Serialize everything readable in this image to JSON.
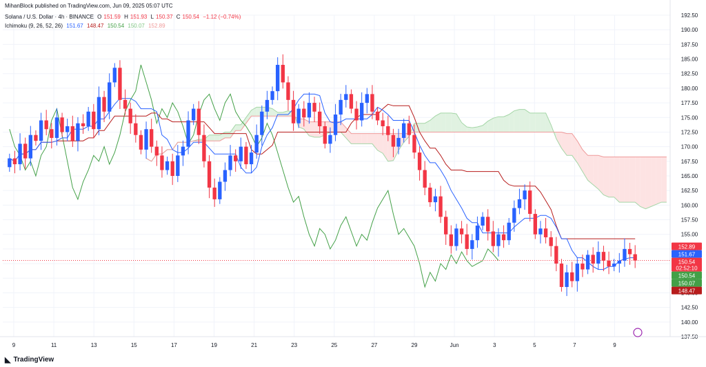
{
  "header": {
    "published": "MihanBlock published on TradingView.com, Jun 09, 2025 05:07 UTC",
    "symbol": "Solana / U.S. Dollar · 4h · BINANCE",
    "ohlc": {
      "o_label": "O",
      "o": "151.59",
      "h_label": "H",
      "h": "151.93",
      "l_label": "L",
      "l": "150.37",
      "c_label": "C",
      "c": "150.54",
      "change": "−1.12 (−0.74%)"
    },
    "indicator": {
      "name": "Ichimoku (9, 26, 52, 26)",
      "v1": "151.67",
      "v2": "148.47",
      "v3": "150.54",
      "v4": "150.07",
      "v5": "152.89"
    }
  },
  "brand": {
    "name": "TradingView"
  },
  "colors": {
    "up": "#2962ff",
    "down": "#f23645",
    "tenkan": "#2962ff",
    "kijun": "#b71c1c",
    "chikou": "#43a047",
    "spanA": "#a5d6a7",
    "spanB": "#ef9a9a",
    "cloud_bull": "#e0f2e1",
    "cloud_bear": "#fde3e3"
  },
  "chart_data": {
    "type": "candlestick",
    "yaxis": {
      "min": 137.5,
      "max": 192.5,
      "ticks": [
        "192.50",
        "190.00",
        "187.50",
        "185.00",
        "182.50",
        "180.00",
        "177.50",
        "175.00",
        "172.50",
        "170.00",
        "167.50",
        "165.00",
        "162.50",
        "160.00",
        "157.50",
        "155.00",
        "152.50",
        "150.00",
        "147.50",
        "145.00",
        "142.50",
        "140.00",
        "137.50"
      ]
    },
    "xaxis": {
      "ticks": [
        "9",
        "11",
        "13",
        "15",
        "17",
        "19",
        "21",
        "23",
        "25",
        "27",
        "29",
        "Jun",
        "3",
        "5",
        "7",
        "9"
      ]
    },
    "price_labels": [
      {
        "value": "152.89",
        "color": "#f23645"
      },
      {
        "value": "151.67",
        "color": "#2962ff"
      },
      {
        "value": "150.54",
        "color": "#f23645",
        "sub": "02:52:10"
      },
      {
        "value": "150.54",
        "color": "#43a047"
      },
      {
        "value": "150.07",
        "color": "#43a047"
      },
      {
        "value": "148.47",
        "color": "#b71c1c"
      }
    ],
    "candles": [
      [
        166.5,
        168.0
      ],
      [
        168.0,
        167.0
      ],
      [
        167.0,
        170.5
      ],
      [
        170.5,
        168.0
      ],
      [
        168.0,
        172.0
      ],
      [
        172.0,
        171.0
      ],
      [
        171.0,
        174.5
      ],
      [
        174.5,
        173.0
      ],
      [
        173.0,
        171.5
      ],
      [
        171.5,
        175.0
      ],
      [
        175.0,
        172.5
      ],
      [
        172.5,
        173.5
      ],
      [
        173.5,
        171.0
      ],
      [
        171.0,
        174.0
      ],
      [
        174.0,
        173.5
      ],
      [
        173.5,
        176.0
      ],
      [
        176.0,
        173.0
      ],
      [
        173.0,
        178.5
      ],
      [
        178.5,
        176.0
      ],
      [
        176.0,
        181.0
      ],
      [
        181.0,
        183.5
      ],
      [
        183.5,
        178.0
      ],
      [
        178.0,
        176.5
      ],
      [
        176.5,
        174.0
      ],
      [
        174.0,
        172.0
      ],
      [
        172.0,
        169.5
      ],
      [
        169.5,
        173.0
      ],
      [
        173.0,
        170.0
      ],
      [
        170.0,
        168.5
      ],
      [
        168.5,
        166.0
      ],
      [
        166.0,
        167.5
      ],
      [
        167.5,
        165.0
      ],
      [
        165.0,
        168.5
      ],
      [
        168.5,
        170.0
      ],
      [
        170.0,
        174.5
      ],
      [
        174.5,
        176.5
      ],
      [
        176.5,
        172.0
      ],
      [
        172.0,
        167.5
      ],
      [
        167.5,
        163.0
      ],
      [
        163.0,
        161.0
      ],
      [
        161.0,
        164.0
      ],
      [
        164.0,
        166.0
      ],
      [
        166.0,
        168.5
      ],
      [
        168.5,
        167.5
      ],
      [
        167.5,
        170.0
      ],
      [
        170.0,
        167.0
      ],
      [
        167.0,
        169.0
      ],
      [
        169.0,
        172.0
      ],
      [
        172.0,
        176.0
      ],
      [
        176.0,
        178.0
      ],
      [
        178.0,
        179.5
      ],
      [
        179.5,
        184.0
      ],
      [
        184.0,
        181.0
      ],
      [
        181.0,
        178.0
      ],
      [
        178.0,
        174.0
      ],
      [
        174.0,
        176.5
      ],
      [
        176.5,
        175.0
      ],
      [
        175.0,
        177.5
      ],
      [
        177.5,
        176.0
      ],
      [
        176.0,
        173.5
      ],
      [
        173.5,
        170.5
      ],
      [
        170.5,
        172.0
      ],
      [
        172.0,
        175.5
      ],
      [
        175.5,
        178.0
      ],
      [
        178.0,
        179.0
      ],
      [
        179.0,
        176.5
      ],
      [
        176.5,
        174.5
      ],
      [
        174.5,
        177.5
      ],
      [
        177.5,
        179.0
      ],
      [
        179.0,
        176.0
      ],
      [
        176.0,
        174.5
      ],
      [
        174.5,
        173.5
      ],
      [
        173.5,
        172.0
      ],
      [
        172.0,
        170.0
      ],
      [
        170.0,
        171.5
      ],
      [
        171.5,
        174.0
      ],
      [
        174.0,
        172.0
      ],
      [
        172.0,
        169.0
      ],
      [
        169.0,
        166.0
      ],
      [
        166.0,
        163.0
      ],
      [
        163.0,
        160.5
      ],
      [
        160.5,
        161.5
      ],
      [
        161.5,
        158.0
      ],
      [
        158.0,
        155.0
      ],
      [
        155.0,
        153.0
      ],
      [
        153.0,
        156.0
      ],
      [
        156.0,
        155.0
      ],
      [
        155.0,
        152.5
      ],
      [
        152.5,
        154.0
      ],
      [
        154.0,
        156.5
      ],
      [
        156.5,
        158.0
      ],
      [
        158.0,
        155.5
      ],
      [
        155.5,
        153.0
      ],
      [
        153.0,
        155.0
      ],
      [
        155.0,
        154.0
      ],
      [
        154.0,
        157.0
      ],
      [
        157.0,
        159.5
      ],
      [
        159.5,
        161.0
      ],
      [
        161.0,
        162.5
      ],
      [
        162.5,
        158.5
      ],
      [
        158.5,
        155.0
      ],
      [
        155.0,
        156.0
      ],
      [
        156.0,
        154.5
      ],
      [
        154.5,
        153.0
      ],
      [
        153.0,
        150.0
      ],
      [
        150.0,
        146.0
      ],
      [
        146.0,
        148.5
      ],
      [
        148.5,
        147.0
      ],
      [
        147.0,
        150.0
      ],
      [
        150.0,
        149.0
      ],
      [
        149.0,
        151.5
      ],
      [
        151.5,
        150.0
      ],
      [
        150.0,
        152.0
      ],
      [
        152.0,
        150.5
      ],
      [
        150.5,
        149.5
      ],
      [
        149.5,
        150.0
      ],
      [
        150.0,
        150.5
      ],
      [
        150.5,
        152.5
      ],
      [
        152.5,
        151.6
      ],
      [
        151.6,
        150.54
      ]
    ]
  }
}
